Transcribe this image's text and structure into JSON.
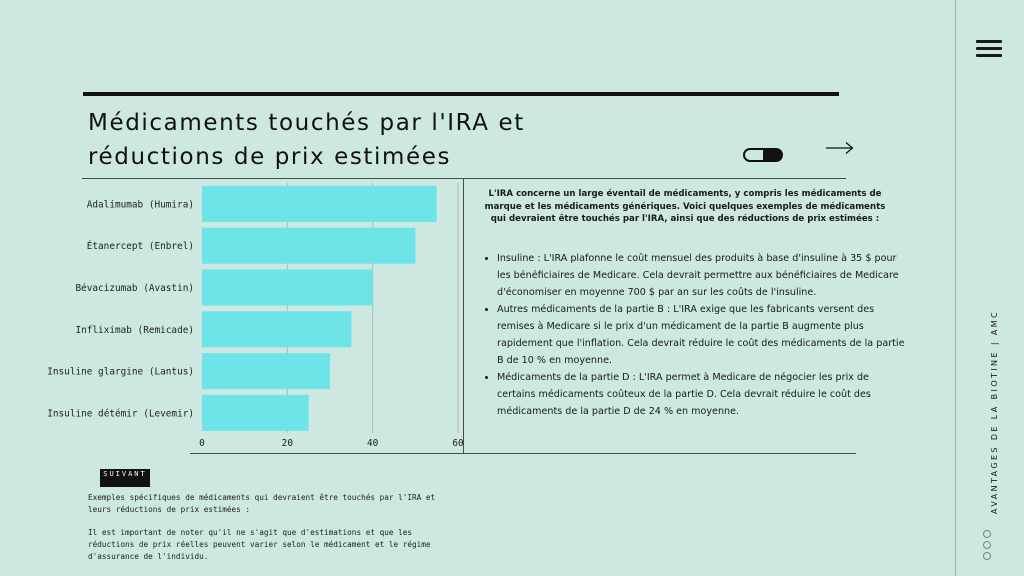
{
  "title_line1": "Médicaments touchés par l'IRA et",
  "title_line2": "réductions de prix estimées",
  "sidebar": {
    "vertical_label": "AVANTAGES DE LA BIOTINE | AMC"
  },
  "icons": {
    "menu": "hamburger-icon",
    "pill": "pill-icon",
    "arrow": "arrow-right-icon"
  },
  "colors": {
    "background": "#cde7e1",
    "bar": "#6ce4e8",
    "text": "#1a1a1a"
  },
  "chart_data": {
    "type": "bar",
    "orientation": "horizontal",
    "categories": [
      "Adalimumab (Humira)",
      "Étanercept (Enbrel)",
      "Bévacizumab (Avastin)",
      "Infliximab (Remicade)",
      "Insuline glargine (Lantus)",
      "Insuline détémir (Levemir)"
    ],
    "values": [
      55,
      50,
      40,
      35,
      30,
      25
    ],
    "xlim": [
      0,
      60
    ],
    "xticks": [
      0,
      20,
      40,
      60
    ],
    "grid": true,
    "title": "",
    "xlabel": "",
    "ylabel": ""
  },
  "intro_text": "L'IRA concerne un large éventail de médicaments, y compris les médicaments de marque et les médicaments génériques. Voici quelques exemples de médicaments qui devraient être touchés par l'IRA, ainsi que des réductions de prix estimées :",
  "bullets": [
    "Insuline : L'IRA plafonne le coût mensuel des produits à base d'insuline à 35 $ pour les bénéficiaires de Medicare. Cela devrait permettre aux bénéficiaires de Medicare d'économiser en moyenne 700 $ par an sur les coûts de l'insuline.",
    "Autres médicaments de la partie B : L'IRA exige que les fabricants versent des remises à Medicare si le prix d'un médicament de la partie B augmente plus rapidement que l'inflation. Cela devrait réduire le coût des médicaments de la partie B de 10 % en moyenne.",
    "Médicaments de la partie D : L'IRA permet à Medicare de négocier les prix de certains médicaments coûteux de la partie D. Cela devrait réduire le coût des médicaments de la partie D de 24 % en moyenne."
  ],
  "next_button": "SUIVANT",
  "footer_note1": "Exemples spécifiques de médicaments qui devraient être touchés par l'IRA et leurs réductions de prix estimées :",
  "footer_note2": "Il est important de noter qu'il ne s'agit que d'estimations et que les réductions de prix réelles peuvent varier selon le médicament et le régime d'assurance de l'individu."
}
